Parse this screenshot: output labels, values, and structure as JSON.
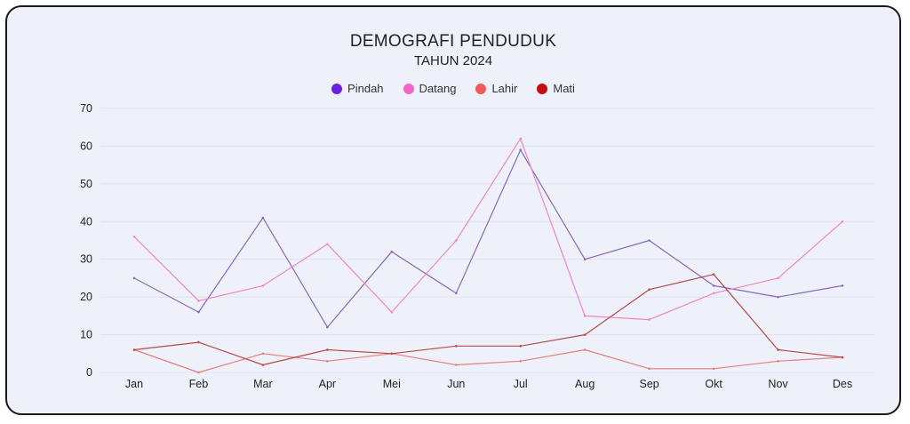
{
  "chart_data": {
    "type": "line",
    "title": "DEMOGRAFI PENDUDUK",
    "subtitle": "TAHUN 2024",
    "categories": [
      "Jan",
      "Feb",
      "Mar",
      "Apr",
      "Mei",
      "Jun",
      "Jul",
      "Aug",
      "Sep",
      "Okt",
      "Nov",
      "Des"
    ],
    "ylim": [
      0,
      70
    ],
    "yticks": [
      "0",
      "10",
      "20",
      "30",
      "40",
      "50",
      "60",
      "70"
    ],
    "grid": true,
    "legend_position": "top-center",
    "series": [
      {
        "name": "Pindah",
        "color": "#6a22e0",
        "line_color": "#8a6ab8",
        "values": [
          25,
          16,
          41,
          12,
          32,
          21,
          59,
          30,
          35,
          23,
          20,
          23
        ]
      },
      {
        "name": "Datang",
        "color": "#f266c8",
        "line_color": "#ee86c8",
        "values": [
          36,
          19,
          23,
          34,
          16,
          35,
          62,
          15,
          14,
          21,
          25,
          40
        ]
      },
      {
        "name": "Lahir",
        "color": "#f25a5a",
        "line_color": "#e38080",
        "values": [
          6,
          0,
          5,
          3,
          5,
          2,
          3,
          6,
          1,
          1,
          3,
          4
        ]
      },
      {
        "name": "Mati",
        "color": "#c40d0d",
        "line_color": "#b84a4a",
        "values": [
          6,
          8,
          2,
          6,
          5,
          7,
          7,
          10,
          22,
          26,
          6,
          4
        ]
      }
    ]
  }
}
